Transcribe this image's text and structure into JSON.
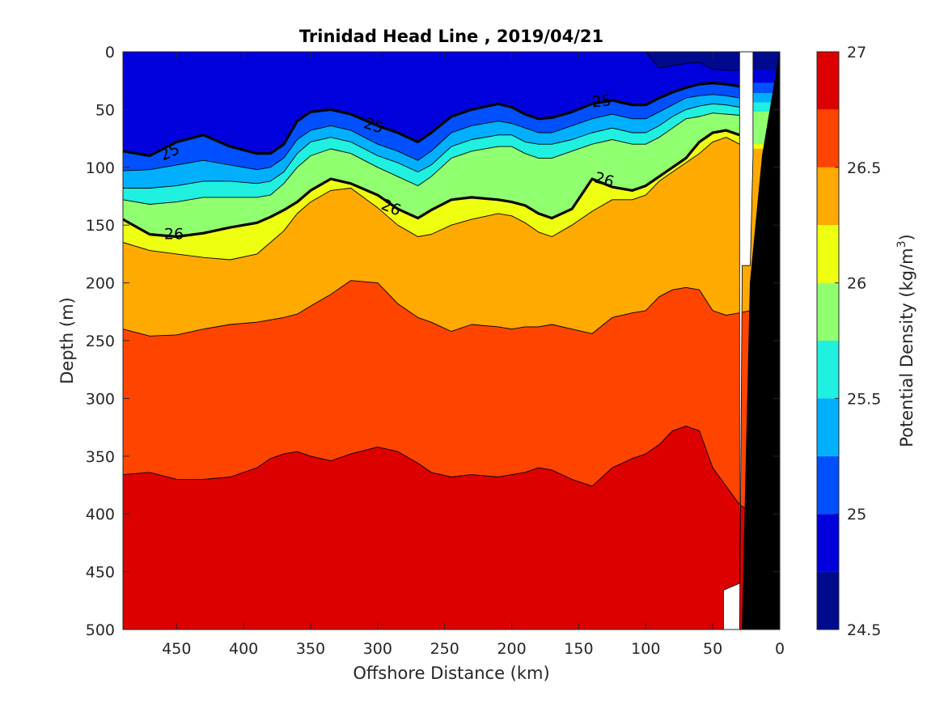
{
  "chart_data": {
    "type": "contourf",
    "title": "Trinidad Head Line , 2019/04/21",
    "xlabel": "Offshore Distance (km)",
    "ylabel": "Depth (m)",
    "xlim": [
      490,
      0
    ],
    "ylim": [
      0,
      500
    ],
    "x_reversed": true,
    "y_reversed": true,
    "xticks": [
      "450",
      "400",
      "350",
      "300",
      "250",
      "200",
      "150",
      "100",
      "50",
      "0"
    ],
    "yticks": [
      "0",
      "50",
      "100",
      "150",
      "200",
      "250",
      "300",
      "350",
      "400",
      "450",
      "500"
    ],
    "colorbar": {
      "label": "Potential Density (kg/m",
      "label_superscript": "3",
      "label_close": ")",
      "range": [
        24.5,
        27
      ],
      "tick_labels": [
        "24.5",
        "25",
        "25.5",
        "26",
        "26.5",
        "27"
      ],
      "levels": [
        {
          "from": 24.5,
          "to": 24.75,
          "color": "#000a8f"
        },
        {
          "from": 24.75,
          "to": 25.0,
          "color": "#0000dd"
        },
        {
          "from": 25.0,
          "to": 25.25,
          "color": "#0050ff"
        },
        {
          "from": 25.25,
          "to": 25.5,
          "color": "#00b0ff"
        },
        {
          "from": 25.5,
          "to": 25.75,
          "color": "#1ff0e0"
        },
        {
          "from": 25.75,
          "to": 26.0,
          "color": "#90ff70"
        },
        {
          "from": 26.0,
          "to": 26.25,
          "color": "#eeff10"
        },
        {
          "from": 26.25,
          "to": 26.5,
          "color": "#ffaa00"
        },
        {
          "from": 26.5,
          "to": 26.75,
          "color": "#ff4400"
        },
        {
          "from": 26.75,
          "to": 27.0,
          "color": "#dd0000"
        }
      ]
    },
    "bold_contours": [
      "25",
      "26"
    ],
    "contour_labels": [
      {
        "text": "25",
        "x": 455,
        "y": 87,
        "angle": -25
      },
      {
        "text": "25",
        "x": 303,
        "y": 64,
        "angle": 18
      },
      {
        "text": "25",
        "x": 133,
        "y": 43,
        "angle": -6
      },
      {
        "text": "26",
        "x": 452,
        "y": 158,
        "angle": 0
      },
      {
        "text": "26",
        "x": 290,
        "y": 135,
        "angle": 22
      },
      {
        "text": "26",
        "x": 131,
        "y": 111,
        "angle": 16
      }
    ],
    "isopycnals": {
      "x_km": [
        490,
        470,
        450,
        430,
        410,
        390,
        380,
        370,
        360,
        350,
        335,
        320,
        300,
        285,
        270,
        260,
        245,
        230,
        210,
        200,
        190,
        180,
        170,
        155,
        140,
        125,
        110,
        100,
        90,
        80,
        70,
        60,
        50,
        40,
        30,
        22
      ],
      "lines": [
        {
          "level": 24.75,
          "depths": [
            0,
            0,
            0,
            0,
            0,
            0,
            0,
            0,
            0,
            0,
            0,
            0,
            0,
            0,
            0,
            0,
            0,
            0,
            0,
            0,
            0,
            0,
            0,
            0,
            0,
            0,
            0,
            0,
            14,
            12,
            10,
            9,
            15,
            16,
            16,
            16
          ]
        },
        {
          "level": 25.0,
          "depths": [
            86,
            90,
            78,
            72,
            82,
            88,
            88,
            80,
            60,
            52,
            50,
            54,
            64,
            70,
            78,
            70,
            56,
            50,
            45,
            48,
            54,
            58,
            57,
            52,
            45,
            42,
            46,
            46,
            40,
            35,
            31,
            28,
            27,
            28,
            30,
            27
          ]
        },
        {
          "level": 25.25,
          "depths": [
            103,
            102,
            98,
            94,
            98,
            102,
            100,
            92,
            76,
            68,
            64,
            68,
            80,
            86,
            94,
            86,
            70,
            64,
            60,
            62,
            66,
            70,
            70,
            64,
            58,
            54,
            58,
            58,
            52,
            46,
            40,
            38,
            37,
            38,
            40,
            36
          ]
        },
        {
          "level": 25.5,
          "depths": [
            118,
            118,
            116,
            112,
            112,
            114,
            112,
            104,
            88,
            78,
            74,
            78,
            90,
            96,
            104,
            98,
            82,
            76,
            72,
            72,
            78,
            80,
            80,
            76,
            70,
            66,
            70,
            70,
            64,
            56,
            50,
            47,
            45,
            46,
            48,
            44
          ]
        },
        {
          "level": 25.75,
          "depths": [
            128,
            132,
            130,
            126,
            126,
            126,
            124,
            114,
            100,
            90,
            84,
            88,
            100,
            108,
            116,
            108,
            92,
            86,
            82,
            82,
            88,
            92,
            92,
            86,
            80,
            76,
            80,
            80,
            74,
            66,
            58,
            56,
            53,
            54,
            55,
            52
          ]
        },
        {
          "level": 26.0,
          "depths": [
            145,
            158,
            160,
            157,
            152,
            148,
            143,
            137,
            130,
            120,
            110,
            114,
            124,
            136,
            144,
            137,
            128,
            126,
            128,
            130,
            133,
            140,
            144,
            136,
            110,
            117,
            120,
            116,
            108,
            100,
            92,
            78,
            70,
            68,
            72,
            80
          ]
        },
        {
          "level": 26.25,
          "depths": [
            165,
            172,
            175,
            178,
            180,
            175,
            165,
            155,
            140,
            130,
            120,
            118,
            135,
            150,
            160,
            158,
            150,
            145,
            140,
            142,
            148,
            156,
            160,
            150,
            138,
            128,
            128,
            124,
            112,
            104,
            96,
            88,
            78,
            74,
            80,
            84
          ]
        },
        {
          "level": 26.5,
          "depths": [
            240,
            246,
            245,
            240,
            236,
            234,
            232,
            230,
            227,
            220,
            210,
            198,
            200,
            218,
            230,
            234,
            242,
            236,
            238,
            240,
            238,
            238,
            236,
            240,
            244,
            230,
            226,
            224,
            212,
            206,
            204,
            206,
            224,
            228,
            226,
            224
          ]
        },
        {
          "level": 26.75,
          "depths": [
            366,
            364,
            370,
            370,
            368,
            360,
            352,
            348,
            346,
            350,
            354,
            348,
            342,
            346,
            356,
            364,
            368,
            366,
            368,
            366,
            364,
            360,
            362,
            370,
            376,
            360,
            352,
            348,
            340,
            328,
            324,
            328,
            360,
            376,
            392,
            398
          ]
        }
      ]
    },
    "seafloor": {
      "x_km": [
        0,
        10,
        16,
        20,
        26,
        30,
        34,
        40,
        490
      ],
      "depths": [
        0,
        90,
        200,
        300,
        400,
        500,
        500,
        500,
        500
      ]
    }
  }
}
